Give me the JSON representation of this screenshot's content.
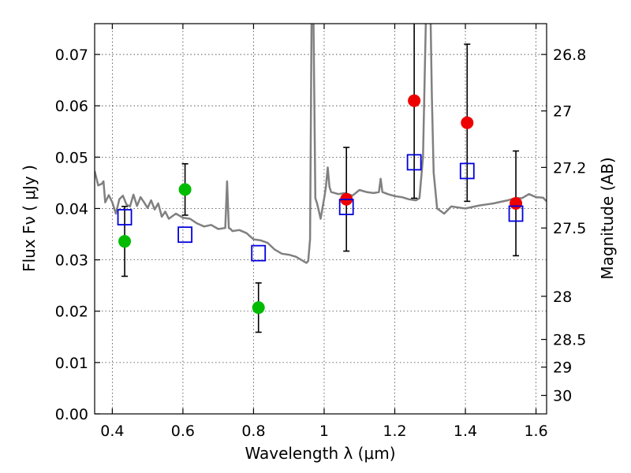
{
  "chart_data": {
    "type": "scatter",
    "xlabel": "Wavelength  λ (μm)",
    "ylabel": "Flux  Fν  ( μJy )",
    "ylabel_right": "Magnitude (AB)",
    "xlim": [
      0.35,
      1.63
    ],
    "ylim": [
      0.0,
      0.076
    ],
    "grid": true,
    "x_ticks": [
      0.4,
      0.6,
      0.8,
      1.0,
      1.2,
      1.4,
      1.6
    ],
    "x_tick_labels": [
      "0.4",
      "0.6",
      "0.8",
      "1",
      "1.2",
      "1.4",
      "1.6"
    ],
    "y_ticks": [
      0.0,
      0.01,
      0.02,
      0.03,
      0.04,
      0.05,
      0.06,
      0.07
    ],
    "y_tick_labels": [
      "0.00",
      "0.01",
      "0.02",
      "0.03",
      "0.04",
      "0.05",
      "0.06",
      "0.07"
    ],
    "right_ticks": [
      {
        "label": "26.8",
        "flux": 0.07
      },
      {
        "label": "27",
        "flux": 0.059
      },
      {
        "label": "27.2",
        "flux": 0.048
      },
      {
        "label": "27.5",
        "flux": 0.0362
      },
      {
        "label": "28",
        "flux": 0.0229
      },
      {
        "label": "28.5",
        "flux": 0.0145
      },
      {
        "label": "29",
        "flux": 0.0091
      },
      {
        "label": "30",
        "flux": 0.0036
      }
    ],
    "series": [
      {
        "marker": "circle",
        "color": "#00bb00",
        "points": [
          {
            "x": 0.435,
            "y": 0.0336,
            "err": 0.0068
          },
          {
            "x": 0.606,
            "y": 0.0437,
            "err": 0.005
          },
          {
            "x": 0.814,
            "y": 0.0207,
            "err": 0.0048
          }
        ]
      },
      {
        "marker": "circle",
        "color": "#ee0000",
        "points": [
          {
            "x": 1.063,
            "y": 0.0418,
            "err": 0.0101
          },
          {
            "x": 1.255,
            "y": 0.061,
            "err": 0.019
          },
          {
            "x": 1.405,
            "y": 0.0567,
            "err": 0.0153
          },
          {
            "x": 1.543,
            "y": 0.041,
            "err": 0.0102
          }
        ]
      },
      {
        "marker": "open-square",
        "color": "#0000dd",
        "points": [
          {
            "x": 0.435,
            "y": 0.0383
          },
          {
            "x": 0.606,
            "y": 0.0349
          },
          {
            "x": 0.814,
            "y": 0.0313
          },
          {
            "x": 1.063,
            "y": 0.0403
          },
          {
            "x": 1.255,
            "y": 0.049
          },
          {
            "x": 1.405,
            "y": 0.0473
          },
          {
            "x": 1.543,
            "y": 0.039
          }
        ]
      },
      {
        "marker": "line",
        "color": "#808080",
        "x": [
          0.35,
          0.36,
          0.37,
          0.375,
          0.38,
          0.39,
          0.4,
          0.41,
          0.42,
          0.43,
          0.44,
          0.45,
          0.46,
          0.47,
          0.48,
          0.49,
          0.5,
          0.51,
          0.52,
          0.53,
          0.54,
          0.55,
          0.56,
          0.58,
          0.6,
          0.62,
          0.64,
          0.66,
          0.68,
          0.7,
          0.72,
          0.725,
          0.73,
          0.735,
          0.74,
          0.76,
          0.78,
          0.8,
          0.82,
          0.84,
          0.86,
          0.88,
          0.9,
          0.92,
          0.94,
          0.95,
          0.955,
          0.96,
          0.965,
          0.97,
          0.975,
          0.98,
          0.99,
          1.0,
          1.005,
          1.01,
          1.015,
          1.02,
          1.04,
          1.06,
          1.08,
          1.1,
          1.12,
          1.14,
          1.155,
          1.16,
          1.165,
          1.18,
          1.2,
          1.22,
          1.24,
          1.26,
          1.27,
          1.28,
          1.29,
          1.295,
          1.3,
          1.305,
          1.31,
          1.32,
          1.34,
          1.36,
          1.38,
          1.4,
          1.42,
          1.44,
          1.46,
          1.48,
          1.5,
          1.52,
          1.54,
          1.56,
          1.58,
          1.6,
          1.62,
          1.63
        ],
        "y": [
          0.0473,
          0.0445,
          0.0448,
          0.0453,
          0.0412,
          0.0426,
          0.0412,
          0.039,
          0.0418,
          0.0425,
          0.0408,
          0.0404,
          0.0427,
          0.0405,
          0.0422,
          0.0412,
          0.0401,
          0.0416,
          0.0398,
          0.041,
          0.0384,
          0.0394,
          0.038,
          0.039,
          0.0382,
          0.038,
          0.0371,
          0.0365,
          0.0368,
          0.036,
          0.0362,
          0.0453,
          0.0362,
          0.036,
          0.0356,
          0.0358,
          0.0352,
          0.034,
          0.0338,
          0.0333,
          0.032,
          0.0312,
          0.031,
          0.0306,
          0.0298,
          0.0294,
          0.0298,
          0.034,
          0.083,
          0.076,
          0.042,
          0.041,
          0.038,
          0.042,
          0.0442,
          0.048,
          0.0442,
          0.0432,
          0.0428,
          0.043,
          0.0425,
          0.0436,
          0.0432,
          0.043,
          0.0432,
          0.0458,
          0.0432,
          0.0428,
          0.0424,
          0.0422,
          0.0418,
          0.0416,
          0.042,
          0.05,
          0.083,
          0.083,
          0.083,
          0.062,
          0.047,
          0.04,
          0.039,
          0.0404,
          0.0402,
          0.04,
          0.0403,
          0.0406,
          0.0408,
          0.041,
          0.0413,
          0.0416,
          0.042,
          0.042,
          0.0428,
          0.0422,
          0.0421,
          0.0414
        ]
      }
    ]
  }
}
